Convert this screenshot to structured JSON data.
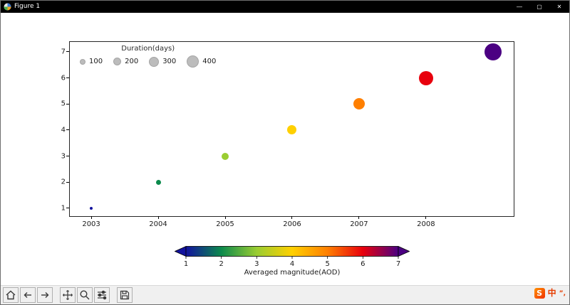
{
  "window": {
    "title": "Figure 1",
    "controls": {
      "minimize": "—",
      "maximize": "▢",
      "close": "✕"
    }
  },
  "chart_data": {
    "type": "scatter",
    "points": [
      {
        "x": 2003,
        "y": 1,
        "color": "#12129e",
        "diameter": 4
      },
      {
        "x": 2004,
        "y": 2,
        "color": "#0c8a4c",
        "diameter": 7
      },
      {
        "x": 2005,
        "y": 3,
        "color": "#9acd32",
        "diameter": 10
      },
      {
        "x": 2006,
        "y": 4,
        "color": "#ffd000",
        "diameter": 13
      },
      {
        "x": 2007,
        "y": 5,
        "color": "#ff7f00",
        "diameter": 16
      },
      {
        "x": 2008,
        "y": 6,
        "color": "#e8000d",
        "diameter": 20
      },
      {
        "x": 2009,
        "y": 7,
        "color": "#4b0082",
        "diameter": 24
      }
    ],
    "xlim": [
      2002.68,
      2009.31
    ],
    "ylim": [
      0.7,
      7.38
    ],
    "xticks": [
      {
        "label": "2003",
        "value": 2003
      },
      {
        "label": "2004",
        "value": 2004
      },
      {
        "label": "2005",
        "value": 2005
      },
      {
        "label": "2006",
        "value": 2006
      },
      {
        "label": "2007",
        "value": 2007
      },
      {
        "label": "2008",
        "value": 2008
      }
    ],
    "yticks": [
      {
        "label": "1",
        "value": 1
      },
      {
        "label": "2",
        "value": 2
      },
      {
        "label": "3",
        "value": 3
      },
      {
        "label": "4",
        "value": 4
      },
      {
        "label": "5",
        "value": 5
      },
      {
        "label": "6",
        "value": 6
      },
      {
        "label": "7",
        "value": 7
      }
    ],
    "legend": {
      "title": "Duration(days)",
      "swatch_color": "#bcbcbc",
      "items": [
        {
          "label": "100",
          "diameter": 8
        },
        {
          "label": "200",
          "diameter": 11
        },
        {
          "label": "300",
          "diameter": 14
        },
        {
          "label": "400",
          "diameter": 17
        }
      ]
    },
    "colorbar": {
      "label": "Averaged magnitude(AOD)",
      "ticks": [
        "1",
        "2",
        "3",
        "4",
        "5",
        "6",
        "7"
      ],
      "gradient": [
        "#12129e",
        "#0c8a4c",
        "#9acd32",
        "#ffd000",
        "#ff7f00",
        "#e8000d",
        "#4b0082"
      ],
      "under_color": "#12129e",
      "over_color": "#4b0082"
    }
  },
  "toolbar": {
    "buttons": [
      "home",
      "back",
      "forward",
      "pan",
      "zoom",
      "configure-subplots",
      "save"
    ]
  },
  "ime": {
    "logo": "S",
    "mode": "中",
    "punct": "”,"
  }
}
